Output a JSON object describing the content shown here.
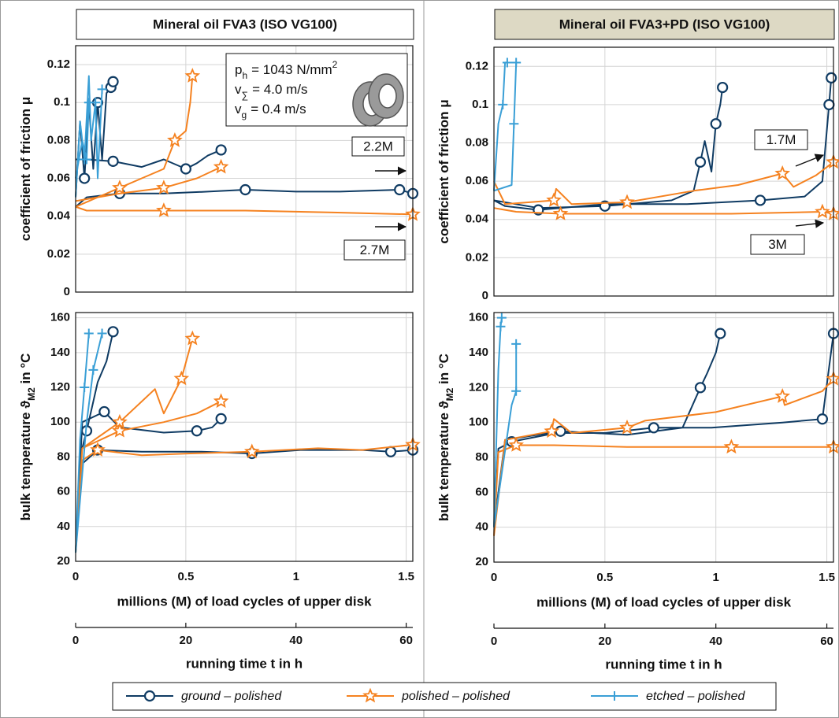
{
  "legend": [
    {
      "name": "ground – polished",
      "color": "#0f3b63",
      "marker": "circle"
    },
    {
      "name": "polished – polished",
      "color": "#f58220",
      "marker": "star"
    },
    {
      "name": "etched – polished",
      "color": "#3a9fd6",
      "marker": "plus"
    }
  ],
  "chart_data": [
    {
      "type": "line",
      "title": "Mineral oil FVA3 (ISO VG100)",
      "ylabel": [
        "coefficient of friction μ"
      ],
      "xlim": [
        0,
        1.53
      ],
      "xticks": [
        0,
        0.5,
        1,
        1.5
      ],
      "ylim": [
        0,
        0.13
      ],
      "yticks": [
        0,
        0.02,
        0.04,
        0.06,
        0.08,
        0.1,
        0.12
      ],
      "grid": true,
      "params": [
        {
          "symbol": "p",
          "sub": "h",
          "text": "= 1043 N/mm",
          "sup": "2"
        },
        {
          "symbol": "v",
          "sub": "∑",
          "text": "= 4.0 m/s"
        },
        {
          "symbol": "v",
          "sub": "g",
          "text": "= 0.4 m/s"
        }
      ],
      "annotations": [
        "2.2M",
        "2.7M"
      ],
      "series": [
        {
          "x": [
            0,
            0.02,
            0.04,
            0.06,
            0.08,
            0.1,
            0.12,
            0.14,
            0.16,
            0.17,
            null,
            0,
            0.05,
            0.17,
            0.3,
            0.4,
            0.5,
            0.55,
            0.6,
            0.66,
            null,
            0,
            0.05,
            0.2,
            0.4,
            0.6,
            0.77,
            1,
            1.2,
            1.47,
            1.53
          ],
          "values": [
            0.05,
            0.09,
            0.06,
            0.1,
            0.065,
            0.1,
            0.07,
            0.105,
            0.108,
            0.111,
            null,
            0.07,
            0.07,
            0.069,
            0.066,
            0.07,
            0.065,
            0.068,
            0.072,
            0.075,
            null,
            0.045,
            0.05,
            0.052,
            0.052,
            0.053,
            0.054,
            0.053,
            0.053,
            0.054,
            0.052
          ]
        },
        {
          "x": [
            0,
            0.05,
            0.4,
            0.77,
            1.17,
            1.53,
            null,
            0,
            0.1,
            0.2,
            0.3,
            0.4,
            0.45,
            0.5,
            0.52,
            0.53,
            null,
            0,
            0.2,
            0.4,
            0.55,
            0.66
          ],
          "values": [
            0.045,
            0.043,
            0.043,
            0.043,
            0.042,
            0.041,
            null,
            0.045,
            0.05,
            0.055,
            0.06,
            0.065,
            0.08,
            0.085,
            0.1,
            0.114,
            null,
            0.048,
            0.052,
            0.055,
            0.06,
            0.066
          ]
        },
        {
          "x": [
            0,
            0.02,
            0.04,
            0.06,
            0.07,
            0.09,
            0.1,
            0.12,
            null,
            0,
            0.03,
            0.05,
            0.06
          ],
          "values": [
            0.05,
            0.09,
            0.07,
            0.114,
            0.08,
            0.1,
            0.06,
            0.107,
            null,
            0.06,
            0.08,
            0.07,
            0.1
          ]
        }
      ]
    },
    {
      "type": "line",
      "ylabel": [
        "bulk temperature ϑ",
        "M2",
        " in °C"
      ],
      "xlabel": "millions (M) of load cycles of upper disk",
      "x2label": "running time t in h",
      "x2lim": [
        0,
        61.2
      ],
      "x2ticks": [
        0,
        20,
        40,
        60
      ],
      "xlim": [
        0,
        1.53
      ],
      "xticks": [
        0,
        0.5,
        1,
        1.5
      ],
      "ylim": [
        20,
        163
      ],
      "yticks": [
        20,
        40,
        60,
        80,
        100,
        120,
        140,
        160
      ],
      "grid": true,
      "series": [
        {
          "x": [
            0,
            0.02,
            0.05,
            0.1,
            0.14,
            0.17,
            null,
            0,
            0.03,
            0.13,
            0.2,
            0.4,
            0.55,
            0.62,
            0.66,
            null,
            0,
            0.02,
            0.1,
            0.3,
            0.57,
            0.8,
            1.02,
            1.3,
            1.43,
            1.53
          ],
          "values": [
            25,
            80,
            95,
            123,
            135,
            152,
            null,
            25,
            100,
            106,
            97,
            94,
            95,
            97,
            102,
            null,
            25,
            75,
            84,
            83,
            83,
            82,
            84,
            84,
            83,
            84
          ]
        },
        {
          "x": [
            0,
            0.03,
            0.1,
            0.3,
            0.52,
            0.8,
            1.1,
            1.3,
            1.53,
            null,
            0,
            0.03,
            0.2,
            0.36,
            0.4,
            0.48,
            0.53,
            null,
            0,
            0.03,
            0.2,
            0.4,
            0.55,
            0.66
          ],
          "values": [
            25,
            78,
            84,
            81,
            82,
            83,
            85,
            84,
            87,
            null,
            25,
            85,
            100,
            119,
            105,
            125,
            148,
            null,
            25,
            85,
            95,
            100,
            105,
            112
          ]
        },
        {
          "x": [
            0,
            0.02,
            0.04,
            0.06,
            null,
            0,
            0.05,
            0.08,
            0.12
          ],
          "values": [
            25,
            90,
            120,
            151,
            null,
            25,
            100,
            130,
            151
          ]
        }
      ]
    },
    {
      "type": "line",
      "title": "Mineral oil FVA3+PD (ISO VG100)",
      "ylabel": [
        "coefficient of friction μ"
      ],
      "xlim": [
        0,
        1.53
      ],
      "xticks": [
        0,
        0.5,
        1,
        1.5
      ],
      "ylim": [
        0,
        0.13
      ],
      "yticks": [
        0,
        0.02,
        0.04,
        0.06,
        0.08,
        0.1,
        0.12
      ],
      "grid": true,
      "annotations": [
        "1.7M",
        "3M"
      ],
      "series": [
        {
          "x": [
            0,
            0.05,
            0.2,
            0.5,
            0.87,
            1.2,
            1.4,
            1.48,
            1.51,
            1.52,
            null,
            0,
            0.2,
            0.5,
            0.8,
            0.9,
            0.93,
            0.95,
            0.98,
            1.0,
            1.02,
            1.03
          ],
          "values": [
            0.05,
            0.047,
            0.045,
            0.048,
            0.048,
            0.05,
            0.052,
            0.06,
            0.1,
            0.114,
            null,
            0.05,
            0.046,
            0.047,
            0.05,
            0.055,
            0.07,
            0.081,
            0.065,
            0.09,
            0.1,
            0.109
          ]
        },
        {
          "x": [
            0,
            0.1,
            0.3,
            0.7,
            1.07,
            1.48,
            1.53,
            null,
            0,
            0.05,
            0.27,
            0.28,
            0.35,
            0.6,
            0.9,
            1.1,
            1.3,
            1.35,
            1.45,
            1.53
          ],
          "values": [
            0.046,
            0.044,
            0.043,
            0.043,
            0.043,
            0.044,
            0.043,
            null,
            0.06,
            0.048,
            0.05,
            0.056,
            0.048,
            0.049,
            0.055,
            0.058,
            0.064,
            0.057,
            0.063,
            0.07
          ]
        },
        {
          "x": [
            0,
            0.02,
            0.04,
            0.05,
            0.06,
            null,
            0,
            0.08,
            0.09,
            0.1
          ],
          "values": [
            0.055,
            0.09,
            0.1,
            0.122,
            0.122,
            null,
            0.055,
            0.058,
            0.09,
            0.122
          ]
        }
      ]
    },
    {
      "type": "line",
      "ylabel": [
        "bulk temperature ϑ",
        "M2",
        " in °C"
      ],
      "xlabel": "millions (M) of load cycles of upper disk",
      "x2label": "running time t in h",
      "x2lim": [
        0,
        61.2
      ],
      "x2ticks": [
        0,
        20,
        40,
        60
      ],
      "xlim": [
        0,
        1.53
      ],
      "xticks": [
        0,
        0.5,
        1,
        1.5
      ],
      "ylim": [
        20,
        163
      ],
      "yticks": [
        20,
        40,
        60,
        80,
        100,
        120,
        140,
        160
      ],
      "grid": true,
      "series": [
        {
          "x": [
            0,
            0.02,
            0.08,
            0.28,
            0.5,
            0.72,
            0.98,
            1.3,
            1.48,
            1.53,
            null,
            0,
            0.05,
            0.3,
            0.6,
            0.85,
            0.93,
            0.96,
            1.0,
            1.02
          ],
          "values": [
            40,
            85,
            89,
            94,
            94,
            97,
            97,
            100,
            102,
            151,
            null,
            40,
            90,
            95,
            93,
            97,
            120,
            128,
            140,
            151
          ]
        },
        {
          "x": [
            0,
            0.02,
            0.1,
            0.27,
            0.6,
            1.07,
            1.4,
            1.53,
            null,
            0,
            0.05,
            0.26,
            0.27,
            0.35,
            0.6,
            0.68,
            1.0,
            1.3,
            1.31,
            1.48,
            1.53
          ],
          "values": [
            35,
            83,
            87,
            87,
            86,
            86,
            86,
            86,
            null,
            35,
            90,
            95,
            102,
            94,
            97,
            101,
            106,
            115,
            110,
            118,
            125
          ]
        },
        {
          "x": [
            0,
            0.02,
            0.03,
            0.035,
            null,
            0,
            0.08,
            0.1,
            0.1
          ],
          "values": [
            40,
            130,
            155,
            160,
            null,
            40,
            110,
            118,
            145
          ]
        }
      ]
    }
  ]
}
